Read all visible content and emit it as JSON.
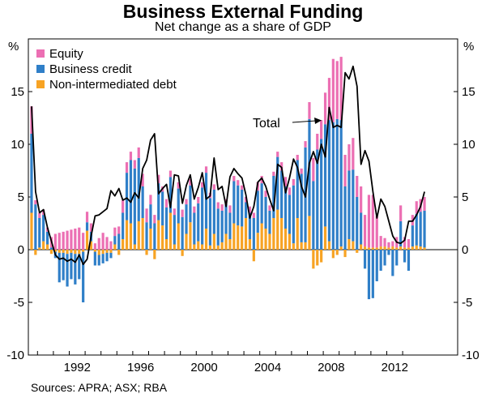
{
  "title": "Business External Funding",
  "subtitle": "Net change as a share of GDP",
  "source": "Sources: APRA; ASX; RBA",
  "chart_data": {
    "type": "bar",
    "stacked": true,
    "unit_label": "%",
    "ylim": [
      -10,
      20
    ],
    "yticks": [
      -10,
      -5,
      0,
      5,
      10,
      15
    ],
    "x_tick_labels": [
      "1992",
      "1996",
      "2000",
      "2004",
      "2008",
      "2012"
    ],
    "x_tick_years": [
      1992,
      1996,
      2000,
      2004,
      2008,
      2012
    ],
    "x_start_year": 1989.5,
    "quarters_per_year": 4,
    "legend_position": "top-left",
    "annotation": "Total",
    "colors": {
      "equity": "#ec6fb3",
      "business_credit": "#2f7fc8",
      "nonintermediated_debt": "#f7a324",
      "total": "#000000"
    },
    "series": [
      {
        "name": "Equity",
        "key": "equity",
        "values": [
          2.6,
          0.4,
          0.5,
          0.5,
          0.4,
          1.0,
          1.5,
          1.6,
          1.7,
          1.8,
          1.9,
          2.0,
          2.1,
          1.6,
          1.0,
          0.8,
          0.6,
          1.1,
          1.6,
          1.2,
          0.8,
          0.8,
          0.7,
          1.2,
          1.0,
          0.8,
          0.8,
          1.0,
          1.2,
          1.3,
          0.9,
          0.8,
          0.8,
          0.5,
          0.8,
          0.6,
          0.6,
          0.6,
          0.7,
          0.5,
          0.6,
          0.6,
          0.6,
          0.5,
          0.6,
          0.5,
          0.5,
          0.6,
          0.6,
          0.5,
          0.7,
          0.5,
          0.5,
          0.4,
          0.5,
          0.6,
          0.5,
          0.8,
          0.7,
          0.6,
          0.5,
          0.4,
          0.5,
          0.8,
          0.9,
          0.7,
          0.6,
          0.5,
          0.5,
          0.6,
          1.6,
          2.2,
          1.5,
          1.8,
          3.0,
          4.0,
          6.0,
          5.5,
          6.0,
          3.0,
          2.5,
          3.0,
          2.0,
          2.5,
          3.0,
          5.0,
          5.0,
          3.0,
          1.0,
          0.8,
          0.5,
          0.5,
          1.0,
          1.5,
          1.0,
          0.8,
          1.0,
          1.2,
          1.2,
          1.3
        ]
      },
      {
        "name": "Business credit",
        "key": "business_credit",
        "values": [
          7.5,
          4.3,
          2.8,
          2.5,
          1.2,
          0.2,
          -0.6,
          -2.8,
          -2.6,
          -3.1,
          -2.5,
          -2.9,
          -2.4,
          -4.8,
          0.8,
          0.9,
          -1.3,
          -1.0,
          -0.9,
          -0.8,
          -0.5,
          0.8,
          1.5,
          2.5,
          4.5,
          6.0,
          7.2,
          6.0,
          3.0,
          2.6,
          2.3,
          2.5,
          3.5,
          3.2,
          3.0,
          3.4,
          2.8,
          3.3,
          3.1,
          2.8,
          3.5,
          3.0,
          3.6,
          5.4,
          5.3,
          4.5,
          4.2,
          3.5,
          3.0,
          2.8,
          2.5,
          4.0,
          3.8,
          3.5,
          1.5,
          2.5,
          3.0,
          4.0,
          3.8,
          3.0,
          2.2,
          4.0,
          5.0,
          4.5,
          4.0,
          3.7,
          5.5,
          5.5,
          6.5,
          9.0,
          9.2,
          6.5,
          9.5,
          10.5,
          9.7,
          11.5,
          12.1,
          12.4,
          12.0,
          6.0,
          6.5,
          6.8,
          5.0,
          3.0,
          -1.8,
          -4.7,
          -4.6,
          -3.0,
          -2.0,
          -1.5,
          -0.5,
          -2.5,
          -1.5,
          2.4,
          -1.2,
          -2.0,
          2.0,
          3.0,
          3.3,
          3.5
        ]
      },
      {
        "name": "Non-intermediated debt",
        "key": "nonintermediated_debt",
        "values": [
          3.5,
          -0.5,
          0.2,
          0.8,
          0.5,
          -0.4,
          -0.2,
          -0.3,
          -0.3,
          -0.4,
          -0.3,
          -0.4,
          -0.4,
          -0.2,
          1.8,
          0.8,
          -0.2,
          -0.5,
          -0.4,
          -0.3,
          -0.3,
          0.5,
          -0.5,
          1.0,
          2.8,
          2.5,
          0.5,
          2.7,
          3.0,
          -0.5,
          2.0,
          -0.9,
          2.8,
          2.3,
          1.0,
          3.5,
          0.5,
          2.5,
          -0.6,
          1.5,
          2.6,
          0.5,
          0.8,
          0.5,
          2.0,
          0.4,
          1.5,
          0.4,
          0.7,
          1.5,
          1.0,
          2.5,
          2.3,
          2.2,
          3.0,
          1.0,
          -1.1,
          1.6,
          2.5,
          2.0,
          1.5,
          3.0,
          3.8,
          3.0,
          2.0,
          1.5,
          0.6,
          3.0,
          0.7,
          0.7,
          3.2,
          -1.8,
          -1.5,
          -1.2,
          2.2,
          0.8,
          -0.8,
          -0.5,
          0.3,
          -0.7,
          1.0,
          0.8,
          -0.3,
          0.5,
          0.3,
          0.2,
          0.2,
          0.2,
          0.3,
          0.3,
          0.2,
          0.3,
          0.2,
          0.3,
          0.2,
          0.2,
          0.3,
          0.4,
          0.3,
          0.2
        ]
      },
      {
        "name": "Total",
        "key": "total",
        "type": "line",
        "values": [
          13.6,
          5.5,
          3.5,
          3.8,
          2.1,
          0.8,
          -0.5,
          -0.9,
          -0.8,
          -1.1,
          -0.9,
          -1.2,
          -0.5,
          -1.4,
          -0.9,
          1.3,
          3.2,
          3.3,
          3.6,
          3.9,
          5.6,
          5.1,
          5.8,
          4.7,
          4.9,
          4.5,
          5.4,
          4.9,
          7.7,
          8.5,
          10.4,
          11.0,
          5.3,
          5.8,
          6.2,
          4.0,
          7.1,
          7.0,
          4.4,
          6.1,
          7.1,
          4.8,
          5.9,
          7.3,
          4.8,
          5.1,
          8.7,
          5.7,
          6.0,
          4.1,
          6.9,
          7.7,
          7.2,
          6.8,
          5.2,
          3.0,
          4.1,
          6.4,
          6.8,
          6.0,
          4.8,
          3.7,
          8.1,
          7.8,
          5.4,
          6.8,
          8.6,
          7.8,
          6.0,
          5.0,
          8.2,
          9.3,
          8.2,
          10.0,
          8.8,
          13.5,
          11.6,
          11.8,
          11.6,
          16.8,
          16.2,
          17.4,
          15.5,
          8.1,
          9.4,
          8.4,
          5.5,
          3.0,
          4.8,
          4.1,
          2.7,
          1.3,
          0.7,
          0.6,
          0.9,
          2.7,
          2.7,
          3.3,
          4.1,
          5.5
        ]
      }
    ]
  }
}
